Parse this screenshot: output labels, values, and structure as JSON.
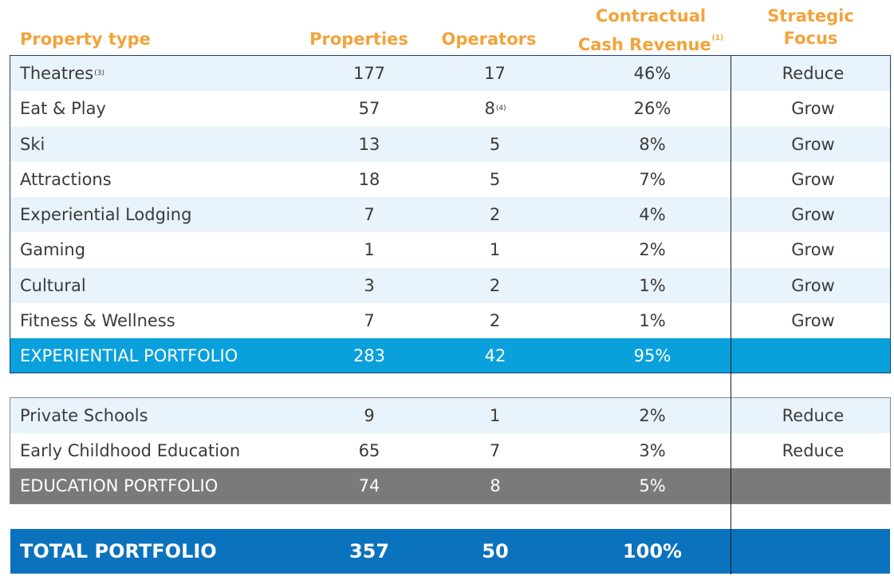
{
  "headers": {
    "property_type": "Property type",
    "properties": "Properties",
    "operators": "Operators",
    "revenue_line1": "Contractual",
    "revenue_line2": "Cash Revenue",
    "revenue_note": "(1)",
    "focus_line1": "Strategic",
    "focus_line2": "Focus"
  },
  "experiential": {
    "rows": [
      {
        "type": "Theatres",
        "note": "(3)",
        "properties": "177",
        "operators": "17",
        "operators_note": "",
        "revenue": "46%",
        "focus": "Reduce"
      },
      {
        "type": "Eat & Play",
        "note": "",
        "properties": "57",
        "operators": "8",
        "operators_note": "(4)",
        "revenue": "26%",
        "focus": "Grow"
      },
      {
        "type": "Ski",
        "note": "",
        "properties": "13",
        "operators": "5",
        "operators_note": "",
        "revenue": "8%",
        "focus": "Grow"
      },
      {
        "type": "Attractions",
        "note": "",
        "properties": "18",
        "operators": "5",
        "operators_note": "",
        "revenue": "7%",
        "focus": "Grow"
      },
      {
        "type": "Experiential Lodging",
        "note": "",
        "properties": "7",
        "operators": "2",
        "operators_note": "",
        "revenue": "4%",
        "focus": "Grow"
      },
      {
        "type": "Gaming",
        "note": "",
        "properties": "1",
        "operators": "1",
        "operators_note": "",
        "revenue": "2%",
        "focus": "Grow"
      },
      {
        "type": "Cultural",
        "note": "",
        "properties": "3",
        "operators": "2",
        "operators_note": "",
        "revenue": "1%",
        "focus": "Grow"
      },
      {
        "type": "Fitness & Wellness",
        "note": "",
        "properties": "7",
        "operators": "2",
        "operators_note": "",
        "revenue": "1%",
        "focus": "Grow"
      }
    ],
    "total": {
      "label": "EXPERIENTIAL PORTFOLIO",
      "properties": "283",
      "operators": "42",
      "revenue": "95%"
    }
  },
  "education": {
    "rows": [
      {
        "type": "Private Schools",
        "properties": "9",
        "operators": "1",
        "revenue": "2%",
        "focus": "Reduce"
      },
      {
        "type": "Early Childhood Education",
        "properties": "65",
        "operators": "7",
        "revenue": "3%",
        "focus": "Reduce"
      }
    ],
    "total": {
      "label": "EDUCATION PORTFOLIO",
      "properties": "74",
      "operators": "8",
      "revenue": "5%"
    }
  },
  "grand_total": {
    "label": "TOTAL PORTFOLIO",
    "properties": "357",
    "operators": "50",
    "revenue": "100%"
  },
  "colors": {
    "header_text": "#f2a33a",
    "row_shade": "#e9f3fb",
    "experiential_total": "#0aa0dc",
    "education_total": "#7a7a7a",
    "grand_total": "#0b72bd"
  }
}
